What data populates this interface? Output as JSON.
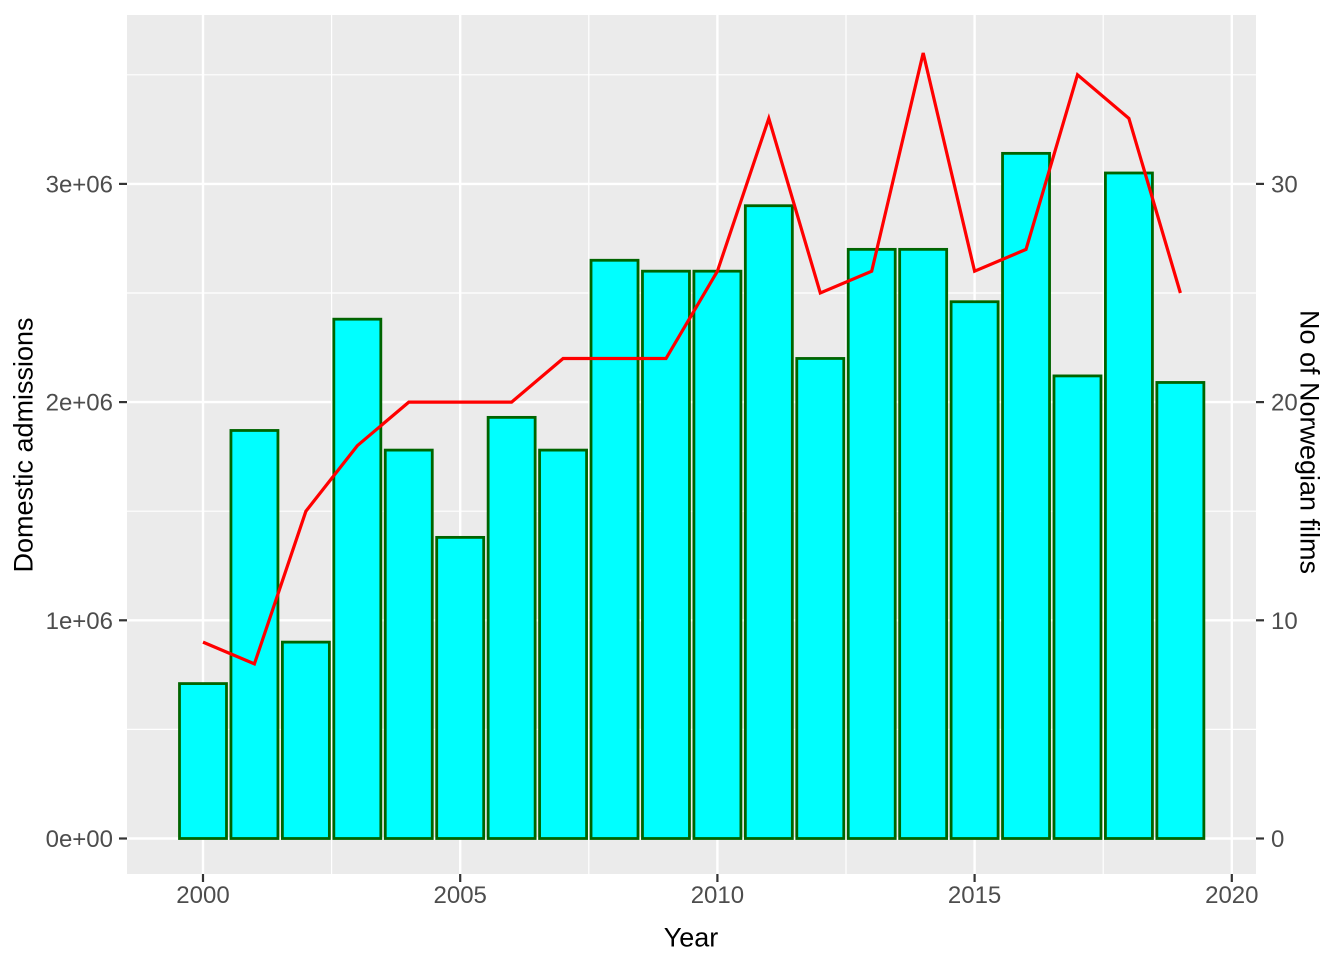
{
  "chart_data": {
    "type": "bar",
    "title": "",
    "xlabel": "Year",
    "ylabel_left": "Domestic admissions",
    "ylabel_right": "No of Norwegian films",
    "categories": [
      2000,
      2001,
      2002,
      2003,
      2004,
      2005,
      2006,
      2007,
      2008,
      2009,
      2010,
      2011,
      2012,
      2013,
      2014,
      2015,
      2016,
      2017,
      2018,
      2019
    ],
    "series": [
      {
        "name": "Domestic admissions",
        "type": "bar",
        "axis": "left",
        "values": [
          710000,
          1870000,
          900000,
          2380000,
          1780000,
          1380000,
          1930000,
          1780000,
          2650000,
          2600000,
          2600000,
          2900000,
          2200000,
          2700000,
          2700000,
          2460000,
          3140000,
          2120000,
          3050000,
          2090000
        ]
      },
      {
        "name": "No of Norwegian films",
        "type": "line",
        "axis": "right",
        "values": [
          9,
          8,
          15,
          18,
          20,
          20,
          20,
          22,
          22,
          22,
          26,
          33,
          25,
          26,
          36,
          26,
          27,
          35,
          33,
          25
        ]
      }
    ],
    "x_ticks": {
      "labels": [
        "2000",
        "2005",
        "2010",
        "2015",
        "2020"
      ],
      "values": [
        2000,
        2005,
        2010,
        2015,
        2020
      ]
    },
    "y_left_ticks": {
      "labels": [
        "0e+00",
        "1e+06",
        "2e+06",
        "3e+06"
      ],
      "values": [
        0,
        1000000,
        2000000,
        3000000
      ]
    },
    "y_right_ticks": {
      "labels": [
        "0",
        "10",
        "20",
        "30"
      ],
      "values": [
        0,
        10,
        20,
        30
      ]
    },
    "y_left_minor": [
      500000,
      1500000,
      2500000,
      3500000
    ],
    "x_minor": [
      2002.5,
      2007.5,
      2012.5,
      2017.5
    ],
    "ylim_left": [
      0,
      3600000
    ],
    "ylim_right": [
      0,
      36
    ],
    "xlim": [
      1998.5,
      2020.5
    ],
    "grid": "white major and minor gridlines on grey panel, legend none",
    "colors": {
      "bar_fill": "#00FFFF",
      "bar_border": "#006400",
      "line": "#FF0000",
      "panel_bg": "#EBEBEB",
      "gridline": "#FFFFFF",
      "tick_label": "#4D4D4D",
      "tick_mark": "#333333",
      "axis_title": "#000000",
      "outer_bg": "#FFFFFF"
    }
  }
}
